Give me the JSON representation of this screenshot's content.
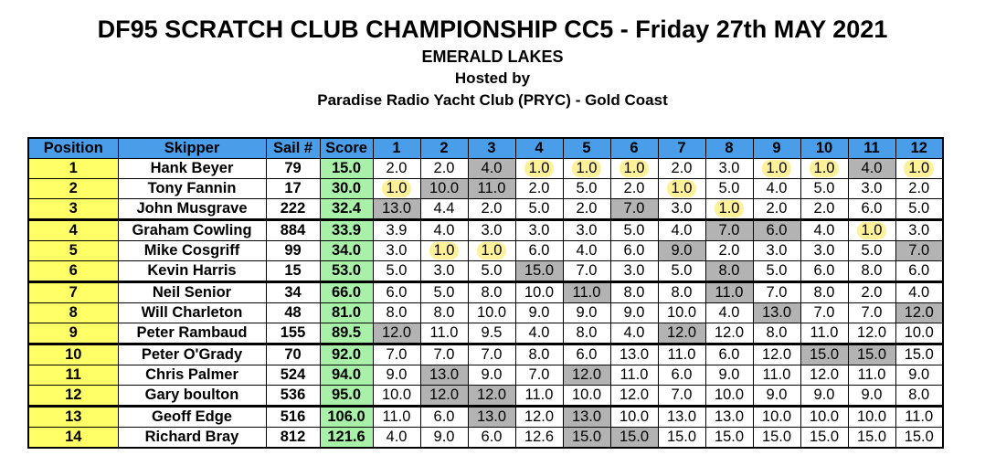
{
  "header": {
    "title": "DF95 SCRATCH CLUB CHAMPIONSHIP CC5 - Friday 27th MAY  2021",
    "venue": "EMERALD LAKES",
    "hosted_by_label": "Hosted by",
    "host": "Paradise Radio Yacht Club (PRYC) - Gold Coast"
  },
  "columns": {
    "position": "Position",
    "skipper": "Skipper",
    "sail": "Sail #",
    "score": "Score",
    "races": [
      "1",
      "2",
      "3",
      "4",
      "5",
      "6",
      "7",
      "8",
      "9",
      "10",
      "11",
      "12"
    ]
  },
  "colors": {
    "header_bg": "#4a9de8",
    "position_bg": "#ffff66",
    "score_bg": "#a9f0a9",
    "dropped_bg": "#b3b3b3",
    "win_highlight": "#fff09a"
  },
  "rows": [
    {
      "position": "1",
      "skipper": "Hank Beyer",
      "sail": "79",
      "score": "15.0",
      "races": [
        "2.0",
        "2.0",
        "4.0",
        "1.0",
        "1.0",
        "1.0",
        "2.0",
        "3.0",
        "1.0",
        "1.0",
        "4.0",
        "1.0"
      ],
      "dropped": [
        2,
        10
      ],
      "wins": [
        3,
        4,
        5,
        8,
        9,
        11
      ],
      "group_start": false
    },
    {
      "position": "2",
      "skipper": "Tony Fannin",
      "sail": "17",
      "score": "30.0",
      "races": [
        "1.0",
        "10.0",
        "11.0",
        "2.0",
        "5.0",
        "2.0",
        "1.0",
        "5.0",
        "4.0",
        "5.0",
        "3.0",
        "2.0"
      ],
      "dropped": [
        1,
        2
      ],
      "wins": [
        0,
        6
      ],
      "group_start": false
    },
    {
      "position": "3",
      "skipper": "John Musgrave",
      "sail": "222",
      "score": "32.4",
      "races": [
        "13.0",
        "4.4",
        "2.0",
        "5.0",
        "2.0",
        "7.0",
        "3.0",
        "1.0",
        "2.0",
        "2.0",
        "6.0",
        "5.0"
      ],
      "dropped": [
        0,
        5
      ],
      "wins": [
        7
      ],
      "group_start": false
    },
    {
      "position": "4",
      "skipper": "Graham Cowling",
      "sail": "884",
      "score": "33.9",
      "races": [
        "3.9",
        "4.0",
        "3.0",
        "3.0",
        "3.0",
        "5.0",
        "4.0",
        "7.0",
        "6.0",
        "4.0",
        "1.0",
        "3.0"
      ],
      "dropped": [
        7,
        8
      ],
      "wins": [
        10
      ],
      "group_start": true
    },
    {
      "position": "5",
      "skipper": "Mike Cosgriff",
      "sail": "99",
      "score": "34.0",
      "races": [
        "3.0",
        "1.0",
        "1.0",
        "6.0",
        "4.0",
        "6.0",
        "9.0",
        "2.0",
        "3.0",
        "3.0",
        "5.0",
        "7.0"
      ],
      "dropped": [
        6,
        11
      ],
      "wins": [
        1,
        2
      ],
      "group_start": false
    },
    {
      "position": "6",
      "skipper": "Kevin Harris",
      "sail": "15",
      "score": "53.0",
      "races": [
        "5.0",
        "3.0",
        "5.0",
        "15.0",
        "7.0",
        "3.0",
        "5.0",
        "8.0",
        "5.0",
        "6.0",
        "8.0",
        "6.0"
      ],
      "dropped": [
        3,
        7
      ],
      "wins": [],
      "group_start": false
    },
    {
      "position": "7",
      "skipper": "Neil Senior",
      "sail": "34",
      "score": "66.0",
      "races": [
        "6.0",
        "5.0",
        "8.0",
        "10.0",
        "11.0",
        "8.0",
        "8.0",
        "11.0",
        "7.0",
        "8.0",
        "2.0",
        "4.0"
      ],
      "dropped": [
        4,
        7
      ],
      "wins": [],
      "group_start": true
    },
    {
      "position": "8",
      "skipper": "Will Charleton",
      "sail": "48",
      "score": "81.0",
      "races": [
        "8.0",
        "8.0",
        "10.0",
        "9.0",
        "9.0",
        "9.0",
        "10.0",
        "4.0",
        "13.0",
        "7.0",
        "7.0",
        "12.0"
      ],
      "dropped": [
        8,
        11
      ],
      "wins": [],
      "group_start": false
    },
    {
      "position": "9",
      "skipper": "Peter Rambaud",
      "sail": "155",
      "score": "89.5",
      "races": [
        "12.0",
        "11.0",
        "9.5",
        "4.0",
        "8.0",
        "4.0",
        "12.0",
        "12.0",
        "8.0",
        "11.0",
        "12.0",
        "10.0"
      ],
      "dropped": [
        0,
        6
      ],
      "wins": [],
      "group_start": false
    },
    {
      "position": "10",
      "skipper": "Peter O'Grady",
      "sail": "70",
      "score": "92.0",
      "races": [
        "7.0",
        "7.0",
        "7.0",
        "8.0",
        "6.0",
        "13.0",
        "11.0",
        "6.0",
        "12.0",
        "15.0",
        "15.0",
        "15.0"
      ],
      "dropped": [
        9,
        10
      ],
      "wins": [],
      "group_start": true
    },
    {
      "position": "11",
      "skipper": "Chris Palmer",
      "sail": "524",
      "score": "94.0",
      "races": [
        "9.0",
        "13.0",
        "9.0",
        "7.0",
        "12.0",
        "11.0",
        "6.0",
        "9.0",
        "11.0",
        "12.0",
        "11.0",
        "9.0"
      ],
      "dropped": [
        1,
        4
      ],
      "wins": [],
      "group_start": false
    },
    {
      "position": "12",
      "skipper": "Gary boulton",
      "sail": "536",
      "score": "95.0",
      "races": [
        "10.0",
        "12.0",
        "12.0",
        "11.0",
        "10.0",
        "12.0",
        "7.0",
        "10.0",
        "9.0",
        "9.0",
        "9.0",
        "8.0"
      ],
      "dropped": [
        1,
        2
      ],
      "wins": [],
      "group_start": false
    },
    {
      "position": "13",
      "skipper": "Geoff Edge",
      "sail": "516",
      "score": "106.0",
      "races": [
        "11.0",
        "6.0",
        "13.0",
        "12.0",
        "13.0",
        "10.0",
        "13.0",
        "13.0",
        "10.0",
        "10.0",
        "10.0",
        "11.0"
      ],
      "dropped": [
        2,
        4
      ],
      "wins": [],
      "group_start": true
    },
    {
      "position": "14",
      "skipper": "Richard Bray",
      "sail": "812",
      "score": "121.6",
      "races": [
        "4.0",
        "9.0",
        "6.0",
        "12.6",
        "15.0",
        "15.0",
        "15.0",
        "15.0",
        "15.0",
        "15.0",
        "15.0",
        "15.0"
      ],
      "dropped": [
        4,
        5
      ],
      "wins": [],
      "group_start": false
    }
  ]
}
